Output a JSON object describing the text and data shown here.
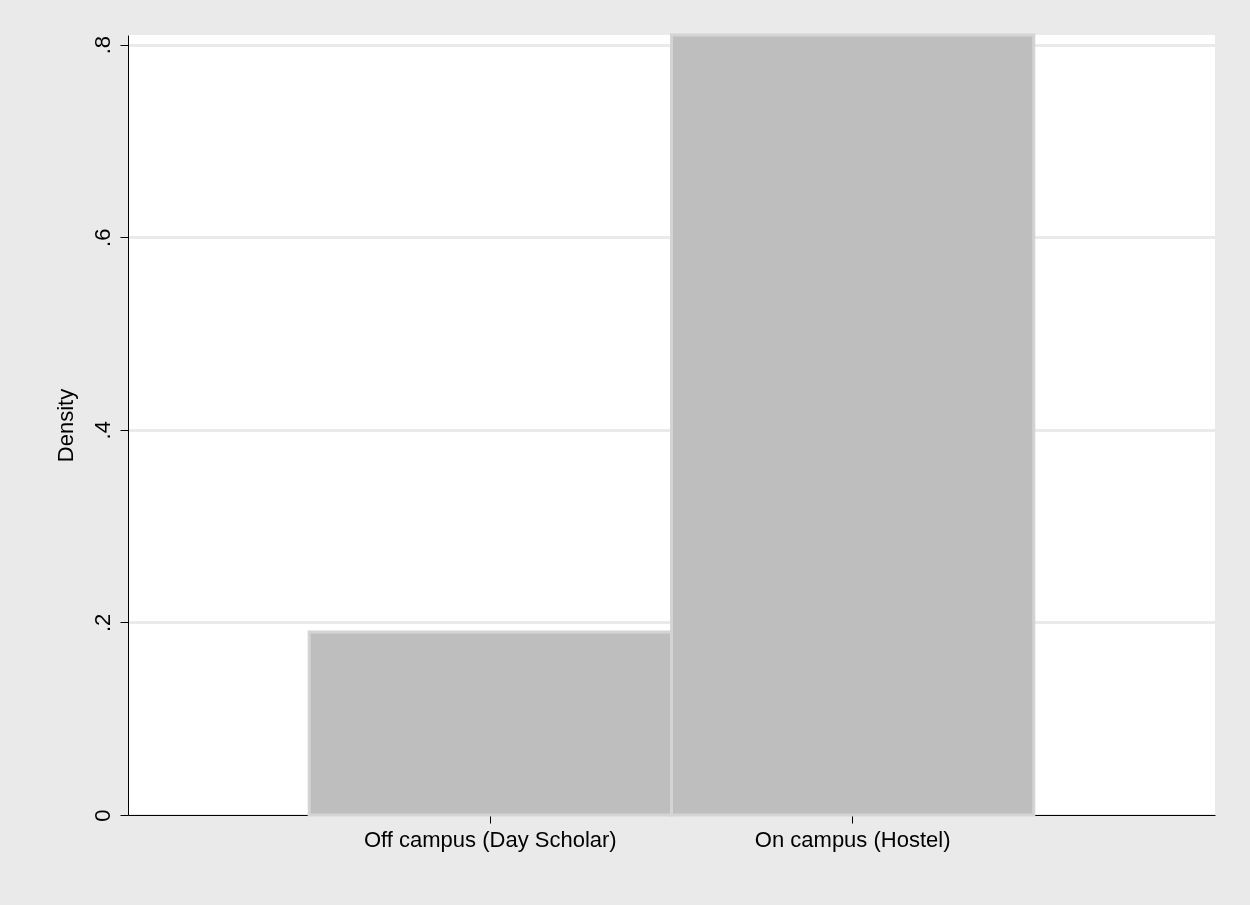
{
  "chart_data": {
    "type": "bar",
    "ylabel": "Density",
    "categories": [
      "Off campus (Day Scholar)",
      "On campus (Hostel)"
    ],
    "values": [
      0.19,
      0.81
    ],
    "color": "#bebebe",
    "ylim": [
      0,
      0.81
    ],
    "yticks": [
      {
        "value": 0,
        "label": "0"
      },
      {
        "value": 0.2,
        "label": ".2"
      },
      {
        "value": 0.4,
        "label": ".4"
      },
      {
        "value": 0.6,
        "label": ".6"
      },
      {
        "value": 0.8,
        "label": ".8"
      }
    ],
    "grid": "y"
  }
}
